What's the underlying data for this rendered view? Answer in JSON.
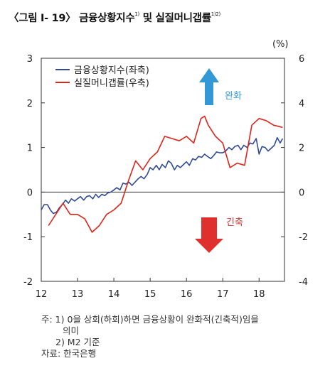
{
  "title": {
    "main": "〈그림 Ⅰ- 19〉 금융상황지수",
    "sup1": "1)",
    "mid": " 및 실질머니갭률",
    "sup2": "1)2)"
  },
  "unit": "(%)",
  "notes": {
    "note1": "주: 1) 0을  상회(하회)하면  금융상황이  완화적(긴축적)임을",
    "note1_cont": "의미",
    "note2": "2) M2 기준",
    "source": "자료: 한국은행"
  },
  "annotations": {
    "ease": {
      "label": "완화",
      "color": "#3399d6"
    },
    "tight": {
      "label": "긴축",
      "color": "#e0302d"
    }
  },
  "chart_data": {
    "type": "line",
    "x_ticks": [
      "12",
      "13",
      "14",
      "15",
      "16",
      "17",
      "18"
    ],
    "xlim": [
      12,
      18.7
    ],
    "y_left": {
      "ticks": [
        "3",
        "2",
        "1",
        "0",
        "-1",
        "-2"
      ],
      "lim": [
        -2,
        3
      ]
    },
    "y_right": {
      "ticks": [
        "6",
        "4",
        "2",
        "0",
        "-2",
        "-4"
      ],
      "lim": [
        -4,
        6
      ]
    },
    "zero_line": true,
    "legend_position": "top-left",
    "series": [
      {
        "name": "금융상황지수(좌축)",
        "axis": "left",
        "color": "#2f4b9a",
        "x": [
          12.0,
          12.08,
          12.17,
          12.25,
          12.33,
          12.42,
          12.5,
          12.58,
          12.67,
          12.75,
          12.83,
          12.92,
          13.0,
          13.08,
          13.17,
          13.25,
          13.33,
          13.42,
          13.5,
          13.58,
          13.67,
          13.75,
          13.83,
          13.92,
          14.0,
          14.08,
          14.17,
          14.25,
          14.33,
          14.42,
          14.5,
          14.58,
          14.67,
          14.75,
          14.83,
          14.92,
          15.0,
          15.08,
          15.17,
          15.25,
          15.33,
          15.42,
          15.5,
          15.58,
          15.67,
          15.75,
          15.83,
          15.92,
          16.0,
          16.08,
          16.17,
          16.25,
          16.33,
          16.42,
          16.5,
          16.58,
          16.67,
          16.75,
          16.83,
          16.92,
          17.0,
          17.08,
          17.17,
          17.25,
          17.33,
          17.42,
          17.5,
          17.58,
          17.67,
          17.75,
          17.83,
          17.92,
          18.0,
          18.08,
          18.17,
          18.25,
          18.33,
          18.42,
          18.5,
          18.58,
          18.65
        ],
        "values": [
          -0.4,
          -0.28,
          -0.28,
          -0.4,
          -0.48,
          -0.45,
          -0.35,
          -0.28,
          -0.18,
          -0.25,
          -0.15,
          -0.2,
          -0.15,
          -0.1,
          -0.18,
          -0.1,
          -0.08,
          -0.15,
          -0.05,
          -0.12,
          -0.05,
          -0.08,
          -0.02,
          0.0,
          0.05,
          0.1,
          0.05,
          0.2,
          0.18,
          0.22,
          0.15,
          0.22,
          0.3,
          0.35,
          0.3,
          0.4,
          0.55,
          0.5,
          0.6,
          0.5,
          0.62,
          0.55,
          0.7,
          0.65,
          0.5,
          0.6,
          0.55,
          0.62,
          0.68,
          0.6,
          0.75,
          0.72,
          0.8,
          0.78,
          0.85,
          0.8,
          0.75,
          0.82,
          0.9,
          0.88,
          0.88,
          0.92,
          1.0,
          0.95,
          1.02,
          1.05,
          0.95,
          1.05,
          1.0,
          1.1,
          1.08,
          1.2,
          0.85,
          1.02,
          1.0,
          0.92,
          0.98,
          1.05,
          1.22,
          1.1,
          1.2
        ]
      },
      {
        "name": "실질머니갭률(우축)",
        "axis": "right",
        "color": "#e2231a",
        "x": [
          12.2,
          12.4,
          12.6,
          12.8,
          13.0,
          13.2,
          13.4,
          13.6,
          13.8,
          14.0,
          14.2,
          14.4,
          14.6,
          14.8,
          15.0,
          15.2,
          15.4,
          15.6,
          15.8,
          16.0,
          16.2,
          16.4,
          16.5,
          16.6,
          16.8,
          17.0,
          17.2,
          17.4,
          17.6,
          17.8,
          18.0,
          18.2,
          18.4,
          18.65
        ],
        "values": [
          -1.5,
          -1.0,
          -0.5,
          -1.0,
          -1.0,
          -1.2,
          -1.8,
          -1.5,
          -1.0,
          -0.8,
          -0.5,
          0.5,
          1.4,
          1.0,
          1.5,
          1.8,
          2.5,
          2.4,
          2.3,
          2.5,
          2.2,
          3.3,
          3.4,
          3.0,
          2.5,
          2.2,
          1.1,
          1.3,
          1.2,
          3.0,
          3.3,
          3.2,
          3.0,
          2.9
        ]
      }
    ]
  }
}
